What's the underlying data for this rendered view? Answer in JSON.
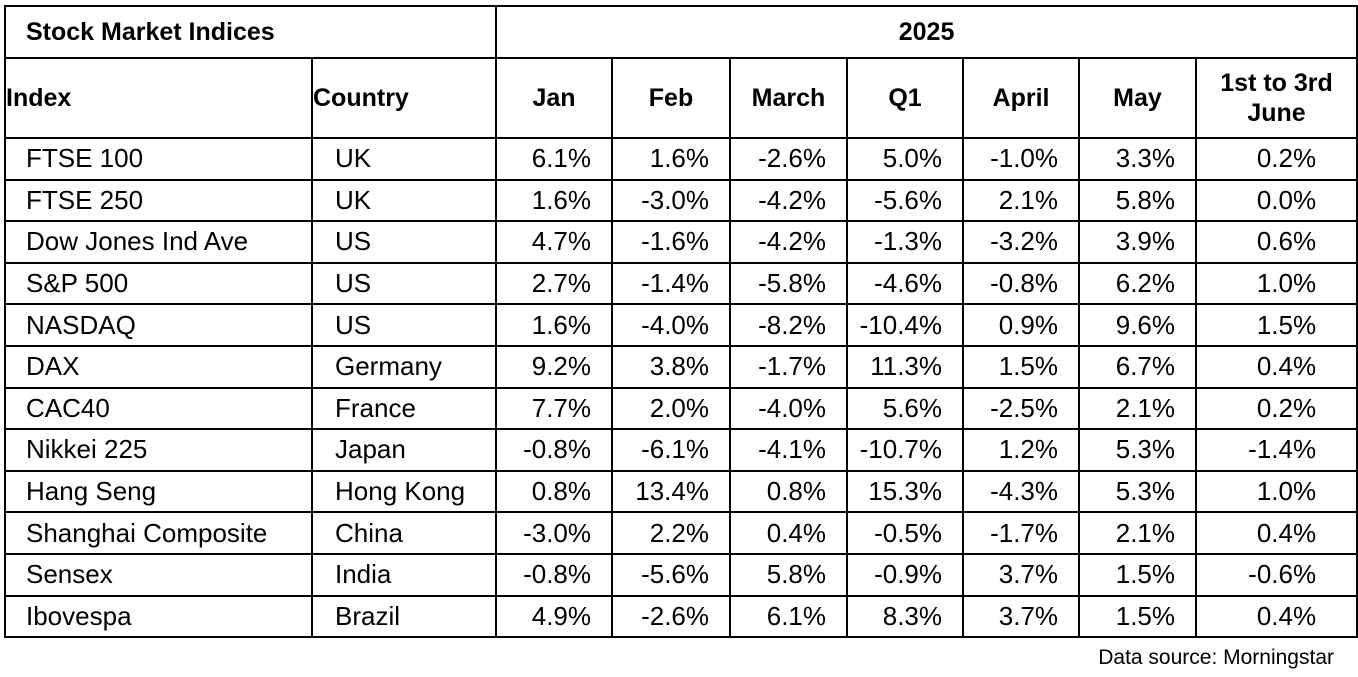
{
  "table": {
    "title": "Stock Market Indices",
    "year": "2025",
    "columns": [
      "Index",
      "Country",
      "Jan",
      "Feb",
      "March",
      "Q1",
      "April",
      "May",
      "1st to 3rd June"
    ],
    "rows": [
      [
        "FTSE 100",
        "UK",
        "6.1%",
        "1.6%",
        "-2.6%",
        "5.0%",
        "-1.0%",
        "3.3%",
        "0.2%"
      ],
      [
        "FTSE 250",
        "UK",
        "1.6%",
        "-3.0%",
        "-4.2%",
        "-5.6%",
        "2.1%",
        "5.8%",
        "0.0%"
      ],
      [
        "Dow Jones Ind Ave",
        "US",
        "4.7%",
        "-1.6%",
        "-4.2%",
        "-1.3%",
        "-3.2%",
        "3.9%",
        "0.6%"
      ],
      [
        "S&P 500",
        "US",
        "2.7%",
        "-1.4%",
        "-5.8%",
        "-4.6%",
        "-0.8%",
        "6.2%",
        "1.0%"
      ],
      [
        "NASDAQ",
        "US",
        "1.6%",
        "-4.0%",
        "-8.2%",
        "-10.4%",
        "0.9%",
        "9.6%",
        "1.5%"
      ],
      [
        "DAX",
        "Germany",
        "9.2%",
        "3.8%",
        "-1.7%",
        "11.3%",
        "1.5%",
        "6.7%",
        "0.4%"
      ],
      [
        "CAC40",
        "France",
        "7.7%",
        "2.0%",
        "-4.0%",
        "5.6%",
        "-2.5%",
        "2.1%",
        "0.2%"
      ],
      [
        "Nikkei 225",
        "Japan",
        "-0.8%",
        "-6.1%",
        "-4.1%",
        "-10.7%",
        "1.2%",
        "5.3%",
        "-1.4%"
      ],
      [
        "Hang Seng",
        "Hong Kong",
        "0.8%",
        "13.4%",
        "0.8%",
        "15.3%",
        "-4.3%",
        "5.3%",
        "1.0%"
      ],
      [
        "Shanghai Composite",
        "China",
        "-3.0%",
        "2.2%",
        "0.4%",
        "-0.5%",
        "-1.7%",
        "2.1%",
        "0.4%"
      ],
      [
        "Sensex",
        "India",
        "-0.8%",
        "-5.6%",
        "5.8%",
        "-0.9%",
        "3.7%",
        "1.5%",
        "-0.6%"
      ],
      [
        "Ibovespa",
        "Brazil",
        "4.9%",
        "-2.6%",
        "6.1%",
        "8.3%",
        "3.7%",
        "1.5%",
        "0.4%"
      ]
    ]
  },
  "source_note": "Data source: Morningstar"
}
